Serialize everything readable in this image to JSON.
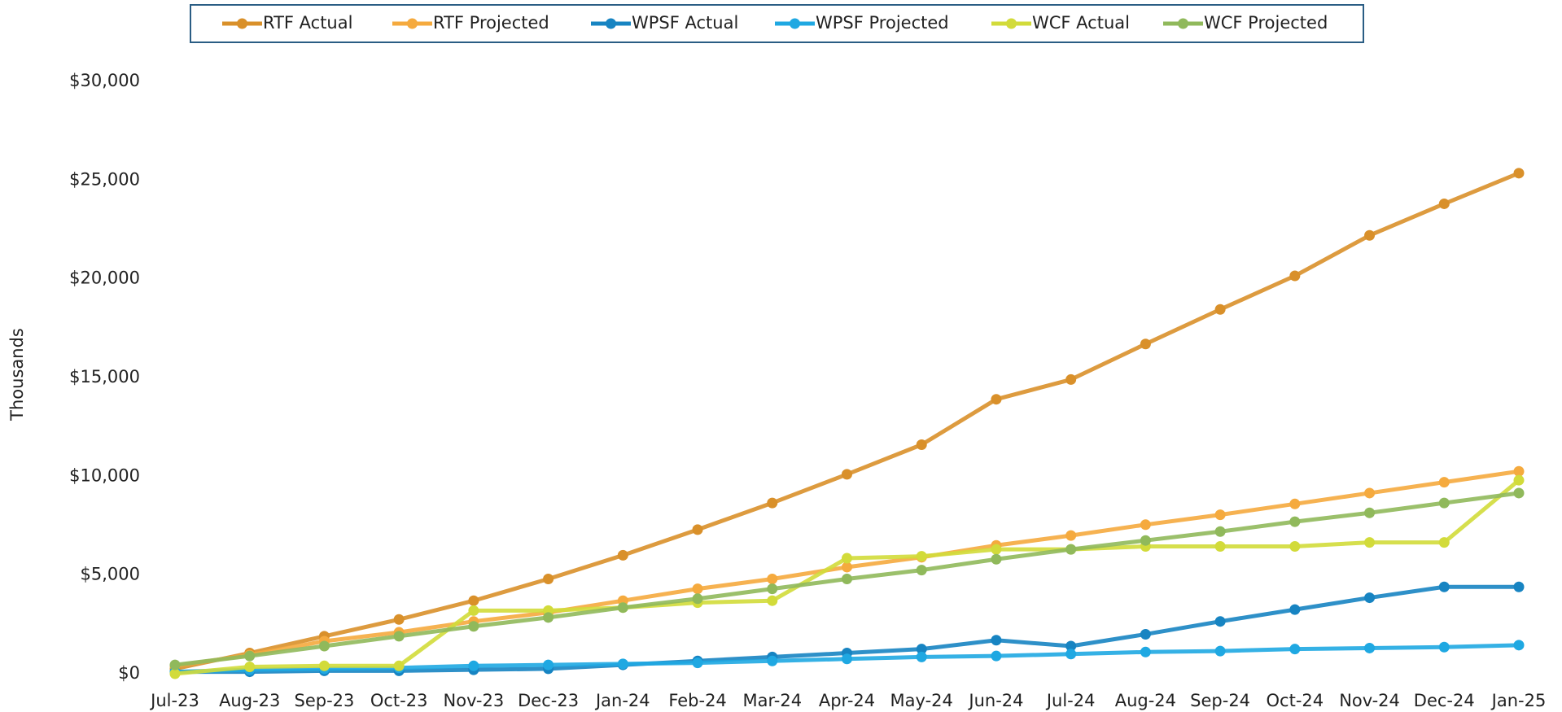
{
  "chart_data": {
    "type": "line",
    "y_axis_label": "Thousands",
    "categories": [
      "Jul-23",
      "Aug-23",
      "Sep-23",
      "Oct-23",
      "Nov-23",
      "Dec-23",
      "Jan-24",
      "Feb-24",
      "Mar-24",
      "Apr-24",
      "May-24",
      "Jun-24",
      "Jul-24",
      "Aug-24",
      "Sep-24",
      "Oct-24",
      "Nov-24",
      "Dec-24",
      "Jan-25"
    ],
    "series": [
      {
        "name": "RTF Actual",
        "color": "#d9902a",
        "values": [
          250,
          1050,
          1900,
          2750,
          3700,
          4800,
          6000,
          7300,
          8650,
          10100,
          11600,
          13900,
          14900,
          16700,
          18450,
          20150,
          22200,
          23800,
          25350
        ]
      },
      {
        "name": "RTF Projected",
        "color": "#f5aa3e",
        "values": [
          400,
          950,
          1650,
          2100,
          2650,
          3100,
          3700,
          4300,
          4800,
          5400,
          5900,
          6500,
          7000,
          7550,
          8050,
          8600,
          9150,
          9700,
          10250
        ]
      },
      {
        "name": "WPSF Actual",
        "color": "#1784c2",
        "values": [
          100,
          100,
          150,
          150,
          200,
          250,
          450,
          650,
          850,
          1050,
          1250,
          1700,
          1400,
          2000,
          2650,
          3250,
          3850,
          4400,
          4400
        ]
      },
      {
        "name": "WPSF Projected",
        "color": "#1fa8e2",
        "values": [
          100,
          200,
          250,
          300,
          400,
          450,
          500,
          550,
          650,
          750,
          850,
          900,
          1000,
          1100,
          1150,
          1250,
          1300,
          1350,
          1450
        ]
      },
      {
        "name": "WCF Actual",
        "color": "#d2db3a",
        "values": [
          0,
          350,
          400,
          400,
          3200,
          3200,
          3350,
          3600,
          3700,
          5850,
          5950,
          6300,
          6300,
          6450,
          6450,
          6450,
          6650,
          6650,
          9800
        ]
      },
      {
        "name": "WCF Projected",
        "color": "#90b95b",
        "values": [
          450,
          900,
          1400,
          1900,
          2400,
          2850,
          3350,
          3800,
          4300,
          4800,
          5250,
          5800,
          6300,
          6750,
          7200,
          7700,
          8150,
          8650,
          9150
        ]
      }
    ],
    "ylim": [
      0,
      30000
    ],
    "yticks": [
      {
        "value": 0,
        "label": "$0"
      },
      {
        "value": 5000,
        "label": "$5,000"
      },
      {
        "value": 10000,
        "label": "$10,000"
      },
      {
        "value": 15000,
        "label": "$15,000"
      },
      {
        "value": 20000,
        "label": "$20,000"
      },
      {
        "value": 25000,
        "label": "$25,000"
      },
      {
        "value": 30000,
        "label": "$30,000"
      }
    ],
    "grid": false,
    "legend": "top"
  }
}
